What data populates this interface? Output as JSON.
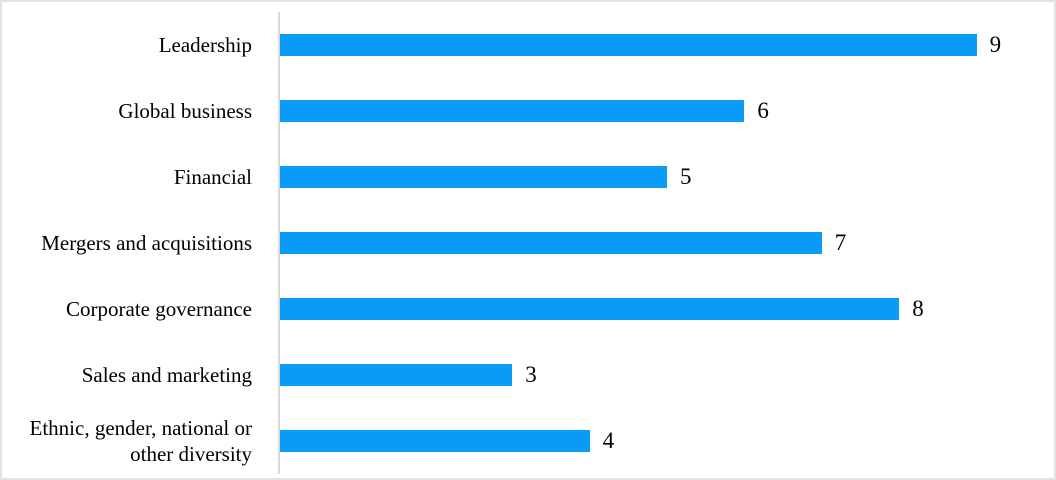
{
  "figure": {
    "background": "#ffffff",
    "border_color": "#e2e2e2"
  },
  "chart_data": {
    "type": "bar",
    "orientation": "horizontal",
    "categories": [
      "Leadership",
      "Global business",
      "Financial",
      "Mergers and acquisitions",
      "Corporate governance",
      "Sales and marketing",
      "Ethnic, gender, national or other diversity"
    ],
    "values": [
      9,
      6,
      5,
      7,
      8,
      3,
      4
    ],
    "data_labels": [
      "9",
      "6",
      "5",
      "7",
      "8",
      "3",
      "4"
    ],
    "xlim": [
      0,
      10
    ],
    "grid": false,
    "legend": "none",
    "title": "",
    "xlabel": "",
    "ylabel": "",
    "bar_color": "#0a9bf7",
    "axis_line_color": "#d9d9d9",
    "text_color": "#000000"
  }
}
